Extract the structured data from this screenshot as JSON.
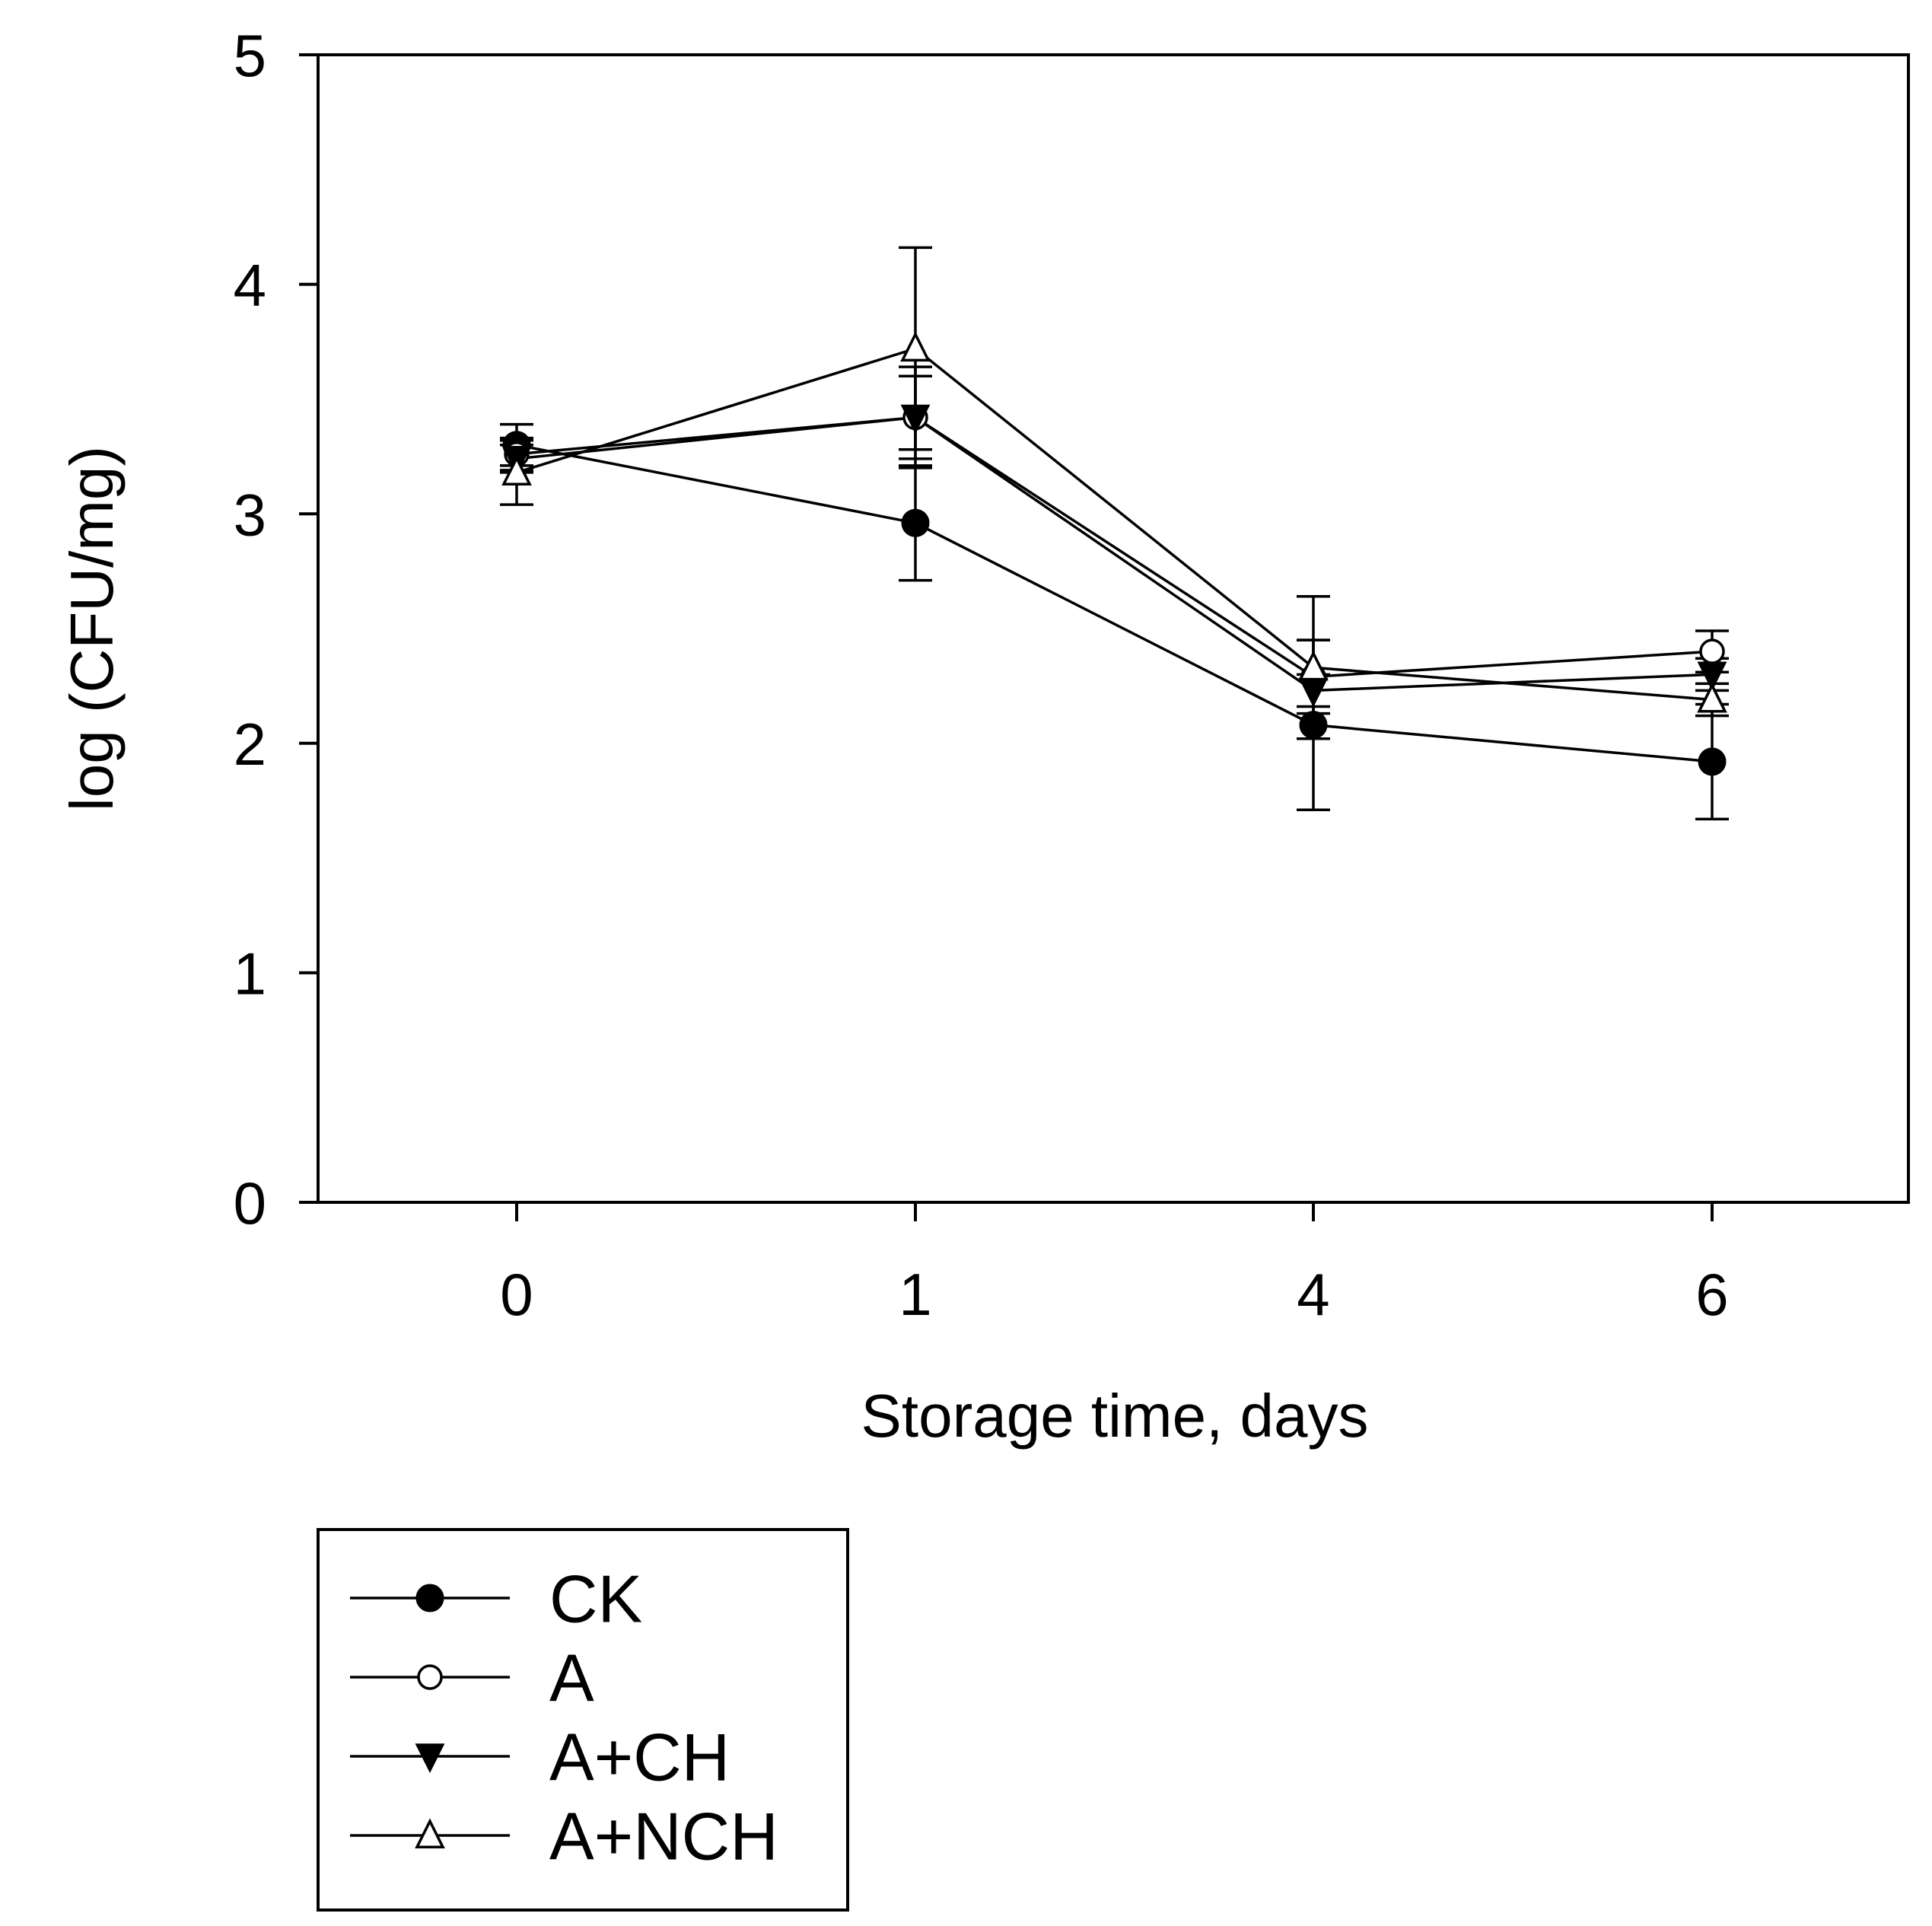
{
  "chart_data": {
    "type": "line",
    "title": "",
    "xlabel": "Storage time, days",
    "ylabel": "log (CFU/mg)",
    "categories": [
      "0",
      "1",
      "4",
      "6"
    ],
    "ylim": [
      0,
      5
    ],
    "yticks": [
      "0",
      "1",
      "2",
      "3",
      "4",
      "5"
    ],
    "grid": false,
    "legend_position": "bottom-left",
    "series": [
      {
        "name": "CK",
        "marker": "filled-circle",
        "values": [
          3.3,
          2.96,
          2.08,
          1.92
        ],
        "errors": [
          0.09,
          0.25,
          0.37,
          0.25
        ]
      },
      {
        "name": "A",
        "marker": "open-circle",
        "values": [
          3.26,
          3.42,
          2.29,
          2.4
        ],
        "errors": [
          0.07,
          0.22,
          0.16,
          0.09
        ]
      },
      {
        "name": "A+CH",
        "marker": "filled-triangle-down",
        "values": [
          3.24,
          3.42,
          2.23,
          2.3
        ],
        "errors": [
          0.06,
          0.18,
          0.07,
          0.07
        ]
      },
      {
        "name": "A+NCH",
        "marker": "open-triangle-up",
        "values": [
          3.18,
          3.72,
          2.33,
          2.19
        ],
        "errors": [
          0.14,
          0.44,
          0.31,
          0.07
        ]
      }
    ]
  }
}
